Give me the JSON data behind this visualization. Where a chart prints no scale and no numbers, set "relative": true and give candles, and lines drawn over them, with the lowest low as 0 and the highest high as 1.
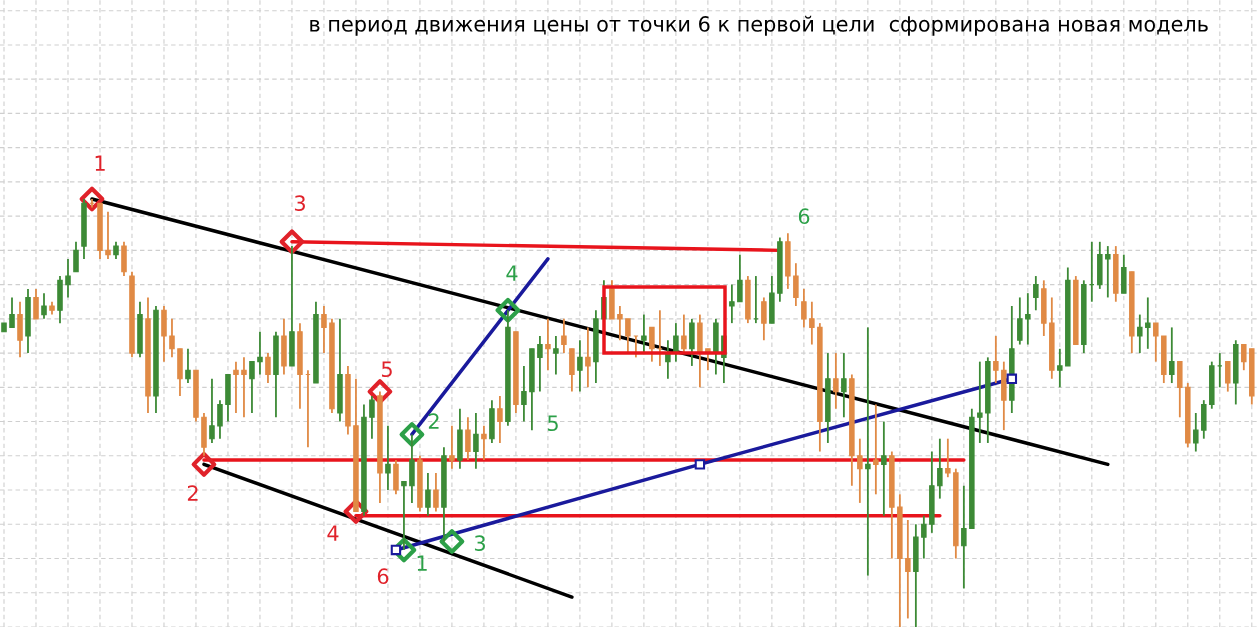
{
  "chart_data": {
    "type": "candlestick",
    "title": "в период движения цены от точки 6 к первой цели  сформирована новая модель",
    "relative": true,
    "grid": true,
    "categories": [
      null,
      null,
      null,
      null,
      null,
      null,
      null,
      null,
      null,
      null,
      null,
      null,
      null,
      null,
      null,
      null,
      null,
      null,
      null,
      null,
      null,
      null,
      null,
      null,
      null,
      null,
      null,
      null,
      null,
      null,
      null,
      null,
      null,
      null,
      null,
      null,
      null,
      null,
      null,
      null,
      null,
      null,
      null,
      null,
      null,
      null,
      null,
      null,
      null,
      null,
      null,
      null,
      null,
      null,
      null,
      null,
      null,
      null,
      null,
      null,
      null,
      null,
      null,
      null,
      null,
      null,
      null,
      null,
      null,
      null,
      null,
      null,
      null,
      null,
      null,
      null,
      null,
      null,
      null,
      null,
      null,
      null,
      null,
      null,
      null,
      null,
      null,
      null,
      null,
      null,
      null,
      null,
      null,
      null,
      null,
      null,
      null,
      null,
      null,
      null,
      null,
      null,
      null,
      null,
      null,
      null,
      null,
      null,
      null,
      null,
      null,
      null,
      null,
      null,
      null,
      null,
      null,
      null,
      null,
      null,
      null,
      null,
      null,
      null,
      null,
      null,
      null,
      null,
      null,
      null,
      null,
      null,
      null,
      null,
      null,
      null,
      null,
      null,
      null,
      null,
      null,
      null,
      null,
      null,
      null,
      null,
      null,
      null,
      null,
      null,
      null,
      null,
      null,
      null,
      null,
      null,
      null
    ],
    "ohlc": [
      [
        0.69,
        0.71,
        0.69,
        0.71
      ],
      [
        0.7,
        0.77,
        0.7,
        0.73
      ],
      [
        0.73,
        0.76,
        0.63,
        0.67
      ],
      [
        0.68,
        0.79,
        0.64,
        0.77
      ],
      [
        0.77,
        0.79,
        0.72,
        0.72
      ],
      [
        0.73,
        0.78,
        0.72,
        0.75
      ],
      [
        0.75,
        0.76,
        0.73,
        0.74
      ],
      [
        0.74,
        0.82,
        0.71,
        0.81
      ],
      [
        0.8,
        0.86,
        0.77,
        0.82
      ],
      [
        0.83,
        0.9,
        0.83,
        0.88
      ],
      [
        0.89,
        1.0,
        0.86,
        0.99
      ],
      [
        0.99,
        1.0,
        0.98,
        0.99
      ],
      [
        0.99,
        0.99,
        0.86,
        0.88
      ],
      [
        0.88,
        0.97,
        0.86,
        0.87
      ],
      [
        0.87,
        0.9,
        0.86,
        0.89
      ],
      [
        0.89,
        0.9,
        0.82,
        0.83
      ],
      [
        0.82,
        0.83,
        0.63,
        0.64
      ],
      [
        0.64,
        0.76,
        0.63,
        0.73
      ],
      [
        0.72,
        0.77,
        0.5,
        0.54
      ],
      [
        0.54,
        0.75,
        0.5,
        0.74
      ],
      [
        0.74,
        0.75,
        0.62,
        0.68
      ],
      [
        0.68,
        0.72,
        0.63,
        0.65
      ],
      [
        0.65,
        0.65,
        0.54,
        0.58
      ],
      [
        0.58,
        0.65,
        0.57,
        0.6
      ],
      [
        0.6,
        0.6,
        0.48,
        0.49
      ],
      [
        0.49,
        0.5,
        0.4,
        0.42
      ],
      [
        0.44,
        0.58,
        0.43,
        0.47
      ],
      [
        0.47,
        0.53,
        0.44,
        0.52
      ],
      [
        0.52,
        0.59,
        0.48,
        0.59
      ],
      [
        0.6,
        0.62,
        0.5,
        0.59
      ],
      [
        0.6,
        0.63,
        0.49,
        0.59
      ],
      [
        0.58,
        0.62,
        0.5,
        0.62
      ],
      [
        0.62,
        0.69,
        0.59,
        0.63
      ],
      [
        0.63,
        0.64,
        0.57,
        0.59
      ],
      [
        0.59,
        0.69,
        0.49,
        0.68
      ],
      [
        0.68,
        0.72,
        0.59,
        0.61
      ],
      [
        0.61,
        0.89,
        0.61,
        0.69
      ],
      [
        0.69,
        0.71,
        0.51,
        0.59
      ],
      [
        0.59,
        0.6,
        0.42,
        0.59
      ],
      [
        0.57,
        0.76,
        0.57,
        0.73
      ],
      [
        0.73,
        0.75,
        0.64,
        0.7
      ],
      [
        0.71,
        0.72,
        0.5,
        0.51
      ],
      [
        0.5,
        0.72,
        0.48,
        0.59
      ],
      [
        0.59,
        0.61,
        0.45,
        0.47
      ],
      [
        0.47,
        0.58,
        0.27,
        0.27
      ],
      [
        0.27,
        0.52,
        0.26,
        0.49
      ],
      [
        0.49,
        0.54,
        0.44,
        0.53
      ],
      [
        0.54,
        0.55,
        0.29,
        0.36
      ],
      [
        0.36,
        0.47,
        0.32,
        0.38
      ],
      [
        0.38,
        0.39,
        0.31,
        0.32
      ],
      [
        0.33,
        0.34,
        0.18,
        0.34
      ],
      [
        0.33,
        0.45,
        0.29,
        0.39
      ],
      [
        0.39,
        0.4,
        0.27,
        0.28
      ],
      [
        0.28,
        0.36,
        0.26,
        0.32
      ],
      [
        0.32,
        0.36,
        0.27,
        0.28
      ],
      [
        0.28,
        0.42,
        0.2,
        0.4
      ],
      [
        0.4,
        0.47,
        0.37,
        0.39
      ],
      [
        0.39,
        0.51,
        0.37,
        0.46
      ],
      [
        0.46,
        0.49,
        0.39,
        0.41
      ],
      [
        0.41,
        0.5,
        0.37,
        0.45
      ],
      [
        0.45,
        0.47,
        0.39,
        0.44
      ],
      [
        0.44,
        0.53,
        0.43,
        0.51
      ],
      [
        0.51,
        0.54,
        0.43,
        0.48
      ],
      [
        0.48,
        0.74,
        0.47,
        0.7
      ],
      [
        0.69,
        0.69,
        0.5,
        0.52
      ],
      [
        0.52,
        0.61,
        0.48,
        0.55
      ],
      [
        0.55,
        0.65,
        0.46,
        0.65
      ],
      [
        0.63,
        0.68,
        0.55,
        0.66
      ],
      [
        0.66,
        0.72,
        0.6,
        0.65
      ],
      [
        0.64,
        0.68,
        0.59,
        0.65
      ],
      [
        0.68,
        0.72,
        0.64,
        0.66
      ],
      [
        0.65,
        0.65,
        0.55,
        0.59
      ],
      [
        0.6,
        0.67,
        0.55,
        0.63
      ],
      [
        0.63,
        0.7,
        0.56,
        0.61
      ],
      [
        0.62,
        0.74,
        0.57,
        0.72
      ],
      [
        0.72,
        0.81,
        0.72,
        0.77
      ],
      [
        0.79,
        0.81,
        0.72,
        0.72
      ],
      [
        0.73,
        0.75,
        0.67,
        0.72
      ],
      [
        0.72,
        0.72,
        0.64,
        0.68
      ],
      [
        0.68,
        0.68,
        0.63,
        0.68
      ],
      [
        0.67,
        0.73,
        0.64,
        0.68
      ],
      [
        0.7,
        0.7,
        0.62,
        0.65
      ],
      [
        0.65,
        0.74,
        0.61,
        0.65
      ],
      [
        0.62,
        0.67,
        0.58,
        0.64
      ],
      [
        0.64,
        0.71,
        0.62,
        0.68
      ],
      [
        0.68,
        0.73,
        0.64,
        0.65
      ],
      [
        0.65,
        0.72,
        0.61,
        0.71
      ],
      [
        0.71,
        0.73,
        0.56,
        0.64
      ],
      [
        0.65,
        0.65,
        0.6,
        0.64
      ],
      [
        0.64,
        0.72,
        0.59,
        0.71
      ],
      [
        0.63,
        0.68,
        0.57,
        0.68
      ],
      [
        0.75,
        0.8,
        0.71,
        0.76
      ],
      [
        0.76,
        0.87,
        0.76,
        0.81
      ],
      [
        0.81,
        0.82,
        0.71,
        0.72
      ],
      [
        0.72,
        0.82,
        0.71,
        0.72
      ],
      [
        0.76,
        0.77,
        0.67,
        0.71
      ],
      [
        0.71,
        0.82,
        0.71,
        0.78
      ],
      [
        0.78,
        0.91,
        0.76,
        0.9
      ],
      [
        0.9,
        0.92,
        0.79,
        0.82
      ],
      [
        0.82,
        0.85,
        0.75,
        0.77
      ],
      [
        0.76,
        0.79,
        0.7,
        0.72
      ],
      [
        0.72,
        0.76,
        0.66,
        0.7
      ],
      [
        0.7,
        0.71,
        0.41,
        0.48
      ],
      [
        0.48,
        0.64,
        0.43,
        0.58
      ],
      [
        0.58,
        0.64,
        0.51,
        0.55
      ],
      [
        0.55,
        0.64,
        0.49,
        0.58
      ],
      [
        0.58,
        0.59,
        0.33,
        0.4
      ],
      [
        0.4,
        0.44,
        0.29,
        0.37
      ],
      [
        0.37,
        0.7,
        0.12,
        0.38
      ],
      [
        0.39,
        0.52,
        0.31,
        0.38
      ],
      [
        0.38,
        0.48,
        0.26,
        0.4
      ],
      [
        0.4,
        0.41,
        0.16,
        0.28
      ],
      [
        0.28,
        0.31,
        0.0,
        0.16
      ],
      [
        0.16,
        0.25,
        0.02,
        0.13
      ],
      [
        0.13,
        0.24,
        0.0,
        0.21
      ],
      [
        0.21,
        0.26,
        0.16,
        0.24
      ],
      [
        0.24,
        0.41,
        0.22,
        0.33
      ],
      [
        0.33,
        0.44,
        0.3,
        0.37
      ],
      [
        0.37,
        0.44,
        0.35,
        0.36
      ],
      [
        0.36,
        0.37,
        0.16,
        0.19
      ],
      [
        0.19,
        0.33,
        0.09,
        0.23
      ],
      [
        0.23,
        0.51,
        0.23,
        0.49
      ],
      [
        0.49,
        0.62,
        0.43,
        0.5
      ],
      [
        0.5,
        0.63,
        0.43,
        0.62
      ],
      [
        0.62,
        0.68,
        0.57,
        0.6
      ],
      [
        0.6,
        0.62,
        0.46,
        0.53
      ],
      [
        0.53,
        0.75,
        0.5,
        0.65
      ],
      [
        0.67,
        0.77,
        0.66,
        0.72
      ],
      [
        0.72,
        0.78,
        0.66,
        0.73
      ],
      [
        0.77,
        0.82,
        0.74,
        0.8
      ],
      [
        0.79,
        0.81,
        0.68,
        0.71
      ],
      [
        0.71,
        0.77,
        0.58,
        0.6
      ],
      [
        0.6,
        0.65,
        0.56,
        0.61
      ],
      [
        0.61,
        0.84,
        0.61,
        0.81
      ],
      [
        0.81,
        0.82,
        0.66,
        0.66
      ],
      [
        0.66,
        0.81,
        0.64,
        0.8
      ],
      [
        0.8,
        0.9,
        0.76,
        0.8
      ],
      [
        0.8,
        0.9,
        0.79,
        0.87
      ],
      [
        0.86,
        0.89,
        0.77,
        0.87
      ],
      [
        0.87,
        0.89,
        0.76,
        0.78
      ],
      [
        0.78,
        0.87,
        0.78,
        0.84
      ],
      [
        0.83,
        0.83,
        0.64,
        0.68
      ],
      [
        0.68,
        0.73,
        0.64,
        0.7
      ],
      [
        0.7,
        0.77,
        0.65,
        0.71
      ],
      [
        0.71,
        0.71,
        0.62,
        0.68
      ],
      [
        0.68,
        0.68,
        0.57,
        0.59
      ],
      [
        0.59,
        0.7,
        0.57,
        0.62
      ],
      [
        0.62,
        0.62,
        0.49,
        0.56
      ],
      [
        0.56,
        0.57,
        0.42,
        0.43
      ],
      [
        0.43,
        0.5,
        0.41,
        0.46
      ],
      [
        0.46,
        0.53,
        0.44,
        0.52
      ],
      [
        0.52,
        0.62,
        0.51,
        0.61
      ],
      [
        0.61,
        0.64,
        0.56,
        0.61
      ],
      [
        0.62,
        0.62,
        0.55,
        0.57
      ],
      [
        0.57,
        0.67,
        0.52,
        0.66
      ],
      [
        0.66,
        0.66,
        0.6,
        0.62
      ],
      [
        0.65,
        0.65,
        0.52,
        0.54
      ]
    ],
    "colors": [
      "#3d8a36",
      "#3d8a36",
      "#e08a45",
      "#3d8a36",
      "#e08a45",
      "#3d8a36",
      "#e08a45",
      "#3d8a36",
      "#3d8a36",
      "#3d8a36",
      "#3d8a36",
      "#e08a45",
      "#e08a45",
      "#e08a45",
      "#3d8a36",
      "#e08a45",
      "#e08a45",
      "#3d8a36",
      "#e08a45",
      "#3d8a36",
      "#e08a45",
      "#e08a45",
      "#e08a45",
      "#3d8a36",
      "#e08a45",
      "#e08a45",
      "#3d8a36",
      "#3d8a36",
      "#3d8a36",
      "#e08a45",
      "#e08a45",
      "#3d8a36",
      "#3d8a36",
      "#e08a45",
      "#3d8a36",
      "#e08a45",
      "#3d8a36",
      "#e08a45",
      "#e08a45",
      "#3d8a36",
      "#e08a45",
      "#e08a45",
      "#3d8a36",
      "#e08a45",
      "#e08a45",
      "#3d8a36",
      "#3d8a36",
      "#e08a45",
      "#3d8a36",
      "#e08a45",
      "#3d8a36",
      "#3d8a36",
      "#e08a45",
      "#3d8a36",
      "#e08a45",
      "#3d8a36",
      "#e08a45",
      "#3d8a36",
      "#e08a45",
      "#3d8a36",
      "#e08a45",
      "#3d8a36",
      "#e08a45",
      "#3d8a36",
      "#e08a45",
      "#3d8a36",
      "#3d8a36",
      "#3d8a36",
      "#e08a45",
      "#3d8a36",
      "#e08a45",
      "#e08a45",
      "#3d8a36",
      "#e08a45",
      "#3d8a36",
      "#3d8a36",
      "#e08a45",
      "#e08a45",
      "#e08a45",
      "#e08a45",
      "#3d8a36",
      "#e08a45",
      "#e08a45",
      "#3d8a36",
      "#3d8a36",
      "#e08a45",
      "#3d8a36",
      "#e08a45",
      "#e08a45",
      "#3d8a36",
      "#3d8a36",
      "#3d8a36",
      "#3d8a36",
      "#e08a45",
      "#3d8a36",
      "#e08a45",
      "#3d8a36",
      "#3d8a36",
      "#e08a45",
      "#e08a45",
      "#e08a45",
      "#e08a45",
      "#e08a45",
      "#3d8a36",
      "#e08a45",
      "#3d8a36",
      "#e08a45",
      "#e08a45",
      "#3d8a36",
      "#e08a45",
      "#3d8a36",
      "#e08a45",
      "#e08a45",
      "#e08a45",
      "#3d8a36",
      "#3d8a36",
      "#3d8a36",
      "#3d8a36",
      "#e08a45",
      "#e08a45",
      "#3d8a36",
      "#3d8a36",
      "#3d8a36",
      "#3d8a36",
      "#e08a45",
      "#e08a45",
      "#3d8a36",
      "#3d8a36",
      "#3d8a36",
      "#3d8a36",
      "#e08a45",
      "#e08a45",
      "#3d8a36",
      "#3d8a36",
      "#e08a45",
      "#3d8a36",
      "#3d8a36",
      "#3d8a36",
      "#3d8a36",
      "#e08a45",
      "#3d8a36",
      "#e08a45",
      "#3d8a36",
      "#3d8a36",
      "#e08a45",
      "#e08a45",
      "#3d8a36",
      "#e08a45",
      "#e08a45",
      "#3d8a36",
      "#3d8a36",
      "#3d8a36",
      "#3d8a36",
      "#e08a45",
      "#3d8a36",
      "#e08a45",
      "#e08a45"
    ],
    "series": [
      {
        "type": "line",
        "color": "#000000",
        "values": [
          null,
          null,
          null,
          null,
          null,
          null,
          null,
          null,
          null,
          null,
          null,
          1.0,
          null,
          null,
          null,
          null,
          null,
          null,
          null,
          null,
          null,
          null,
          null,
          null,
          null,
          null,
          null,
          null,
          null,
          null,
          null,
          null,
          null,
          null,
          null,
          null,
          null,
          null,
          null,
          null,
          null,
          null,
          null,
          null,
          null,
          null,
          null,
          null,
          null,
          null,
          null,
          null,
          null,
          null,
          null,
          null,
          null,
          null,
          null,
          null,
          null,
          null,
          null,
          null,
          null,
          null,
          null,
          null,
          null,
          null,
          null,
          null,
          null,
          null,
          null,
          null,
          null,
          null,
          null,
          null,
          null,
          null,
          null,
          null,
          null,
          null,
          null,
          null,
          null,
          null,
          null,
          null,
          null,
          null,
          null,
          null,
          null,
          null,
          null,
          null,
          null,
          null,
          null,
          null,
          null,
          null,
          null,
          null,
          null,
          null,
          null,
          null,
          null,
          null,
          null,
          null,
          null,
          null,
          null,
          null,
          null,
          null,
          null,
          null,
          null,
          null,
          null,
          null,
          null,
          null,
          null,
          null,
          null,
          null,
          null,
          null,
          null,
          null,
          0.38,
          null,
          null,
          null,
          null,
          null,
          null,
          null,
          null,
          null,
          null,
          null,
          null,
          null,
          null,
          null,
          null,
          null,
          null
        ]
      },
      {
        "type": "line",
        "color": "#000000",
        "values": [
          null,
          null,
          null,
          null,
          null,
          null,
          null,
          null,
          null,
          null,
          null,
          null,
          null,
          null,
          null,
          null,
          null,
          null,
          null,
          null,
          null,
          null,
          null,
          null,
          null,
          0.38,
          null,
          null,
          null,
          null,
          null,
          null,
          null,
          null,
          null,
          null,
          null,
          null,
          null,
          null,
          null,
          null,
          null,
          null,
          null,
          null,
          null,
          null,
          null,
          null,
          null,
          null,
          null,
          null,
          null,
          null,
          null,
          null,
          null,
          null,
          null,
          null,
          null,
          null,
          null,
          null,
          null,
          null,
          null,
          null,
          null,
          0.07,
          null,
          null,
          null,
          null,
          null,
          null,
          null,
          null,
          null,
          null,
          null,
          null,
          null,
          null,
          null,
          null,
          null,
          null,
          null,
          null,
          null,
          null,
          null,
          null,
          null,
          null,
          null,
          null,
          null,
          null,
          null,
          null,
          null,
          null,
          null,
          null,
          null,
          null,
          null,
          null,
          null,
          null,
          null,
          null,
          null,
          null,
          null,
          null,
          null,
          null,
          null,
          null,
          null,
          null,
          null,
          null,
          null,
          null,
          null,
          null,
          null,
          null,
          null,
          null,
          null,
          null,
          null,
          null,
          null,
          null,
          null,
          null,
          null,
          null,
          null,
          null,
          null,
          null,
          null,
          null,
          null,
          null,
          null,
          null,
          null
        ]
      },
      {
        "type": "line",
        "color": "#e8141c",
        "values": [
          null,
          null,
          null,
          null,
          null,
          null,
          null,
          null,
          null,
          null,
          null,
          null,
          null,
          null,
          null,
          null,
          null,
          null,
          null,
          null,
          null,
          null,
          null,
          null,
          null,
          null,
          null,
          null,
          null,
          null,
          null,
          null,
          null,
          null,
          null,
          null,
          0.9,
          null,
          null,
          null,
          null,
          null,
          null,
          null,
          null,
          null,
          null,
          null,
          null,
          null,
          null,
          null,
          null,
          null,
          null,
          null,
          null,
          null,
          null,
          null,
          null,
          null,
          null,
          null,
          null,
          null,
          null,
          null,
          null,
          null,
          null,
          null,
          null,
          null,
          null,
          null,
          null,
          null,
          null,
          null,
          null,
          null,
          null,
          null,
          null,
          null,
          null,
          null,
          null,
          null,
          null,
          null,
          null,
          null,
          null,
          null,
          null,
          0.88,
          null,
          null,
          null,
          null,
          null,
          null,
          null,
          null,
          null,
          null,
          null,
          null,
          null,
          null,
          null,
          null,
          null,
          null,
          null,
          null,
          null,
          null,
          null,
          null,
          null,
          null,
          null,
          null,
          null,
          null,
          null,
          null,
          null,
          null,
          null,
          null,
          null,
          null,
          null,
          null,
          null,
          null,
          null,
          null,
          null,
          null,
          null,
          null,
          null,
          null,
          null,
          null,
          null,
          null,
          null,
          null,
          null,
          null,
          null
        ]
      },
      {
        "type": "line",
        "color": "#e8141c",
        "values": [
          null,
          null,
          null,
          null,
          null,
          null,
          null,
          null,
          null,
          null,
          null,
          null,
          null,
          null,
          null,
          null,
          null,
          null,
          null,
          null,
          null,
          null,
          null,
          null,
          null,
          0.39,
          null,
          null,
          null,
          null,
          null,
          null,
          null,
          null,
          null,
          null,
          null,
          null,
          null,
          null,
          null,
          null,
          null,
          null,
          null,
          null,
          null,
          null,
          null,
          null,
          null,
          null,
          null,
          null,
          null,
          null,
          null,
          null,
          null,
          null,
          null,
          null,
          null,
          null,
          null,
          null,
          null,
          null,
          null,
          null,
          null,
          null,
          null,
          null,
          null,
          null,
          null,
          null,
          null,
          null,
          null,
          null,
          null,
          null,
          null,
          null,
          null,
          null,
          null,
          null,
          null,
          null,
          null,
          null,
          null,
          null,
          null,
          null,
          null,
          null,
          null,
          null,
          null,
          null,
          null,
          null,
          null,
          null,
          null,
          null,
          null,
          null,
          null,
          null,
          null,
          null,
          null,
          null,
          null,
          null,
          0.39,
          null,
          null,
          null,
          null,
          null,
          null,
          null,
          null,
          null,
          null,
          null,
          null,
          null,
          null,
          null,
          null,
          null,
          null,
          null,
          null,
          null,
          null,
          null,
          null,
          null,
          null,
          null,
          null,
          null,
          null,
          null,
          null,
          null,
          null,
          null,
          null
        ]
      },
      {
        "type": "line",
        "color": "#e8141c",
        "values": [
          null,
          null,
          null,
          null,
          null,
          null,
          null,
          null,
          null,
          null,
          null,
          null,
          null,
          null,
          null,
          null,
          null,
          null,
          null,
          null,
          null,
          null,
          null,
          null,
          null,
          null,
          null,
          null,
          null,
          null,
          null,
          null,
          null,
          null,
          null,
          null,
          null,
          null,
          null,
          null,
          null,
          null,
          null,
          null,
          0.26,
          null,
          null,
          null,
          null,
          null,
          null,
          null,
          null,
          null,
          null,
          null,
          null,
          null,
          null,
          null,
          null,
          null,
          null,
          null,
          null,
          null,
          null,
          null,
          null,
          null,
          null,
          null,
          null,
          null,
          null,
          null,
          null,
          null,
          null,
          null,
          null,
          null,
          null,
          null,
          null,
          null,
          null,
          null,
          null,
          null,
          null,
          null,
          null,
          null,
          null,
          null,
          null,
          null,
          null,
          null,
          null,
          null,
          null,
          null,
          null,
          null,
          null,
          null,
          null,
          null,
          null,
          null,
          null,
          null,
          null,
          null,
          null,
          0.26,
          null,
          null,
          null,
          null,
          null,
          null,
          null,
          null,
          null,
          null,
          null,
          null,
          null,
          null,
          null,
          null,
          null,
          null,
          null,
          null,
          null,
          null,
          null,
          null,
          null,
          null,
          null,
          null,
          null,
          null,
          null,
          null,
          null,
          null,
          null,
          null,
          null,
          null,
          null
        ]
      },
      {
        "type": "line",
        "color": "#1a1a9c",
        "values": [
          null,
          null,
          null,
          null,
          null,
          null,
          null,
          null,
          null,
          null,
          null,
          null,
          null,
          null,
          null,
          null,
          null,
          null,
          null,
          null,
          null,
          null,
          null,
          null,
          null,
          null,
          null,
          null,
          null,
          null,
          null,
          null,
          null,
          null,
          null,
          null,
          null,
          null,
          null,
          null,
          null,
          null,
          null,
          null,
          null,
          null,
          null,
          null,
          null,
          null,
          null,
          0.45,
          null,
          null,
          null,
          null,
          null,
          null,
          null,
          null,
          null,
          null,
          null,
          null,
          null,
          null,
          null,
          null,
          0.86,
          null,
          null,
          null,
          null,
          null,
          null,
          null,
          null,
          null,
          null,
          null,
          null,
          null,
          null,
          null,
          null,
          null,
          null,
          null,
          null,
          null,
          null,
          null,
          null,
          null,
          null,
          null,
          null,
          null,
          null,
          null,
          null,
          null,
          null,
          null,
          null,
          null,
          null,
          null,
          null,
          null,
          null,
          null,
          null,
          null,
          null,
          null,
          null,
          null,
          null,
          null,
          null,
          null,
          null,
          null,
          null,
          null,
          null,
          null,
          null,
          null,
          null,
          null,
          null,
          null,
          null,
          null,
          null,
          null,
          null,
          null,
          null,
          null,
          null,
          null,
          null,
          null,
          null,
          null,
          null,
          null,
          null,
          null,
          null,
          null,
          null,
          null,
          null
        ]
      },
      {
        "type": "line",
        "color": "#1a1a9c",
        "marker": "square",
        "values": [
          null,
          null,
          null,
          null,
          null,
          null,
          null,
          null,
          null,
          null,
          null,
          null,
          null,
          null,
          null,
          null,
          null,
          null,
          null,
          null,
          null,
          null,
          null,
          null,
          null,
          null,
          null,
          null,
          null,
          null,
          null,
          null,
          null,
          null,
          null,
          null,
          null,
          null,
          null,
          null,
          null,
          null,
          null,
          null,
          null,
          null,
          null,
          null,
          null,
          0.18,
          null,
          null,
          null,
          null,
          null,
          null,
          null,
          null,
          null,
          null,
          null,
          null,
          null,
          null,
          null,
          null,
          null,
          null,
          null,
          null,
          null,
          null,
          null,
          null,
          null,
          null,
          null,
          null,
          null,
          null,
          null,
          null,
          null,
          null,
          null,
          null,
          null,
          0.38,
          null,
          null,
          null,
          null,
          null,
          null,
          null,
          null,
          null,
          null,
          null,
          null,
          null,
          null,
          null,
          null,
          null,
          null,
          null,
          null,
          null,
          null,
          null,
          null,
          null,
          null,
          null,
          null,
          null,
          null,
          null,
          null,
          null,
          null,
          null,
          null,
          null,
          null,
          0.58,
          null,
          null,
          null,
          null,
          null,
          null,
          null,
          null,
          null,
          null,
          null,
          null,
          null,
          null,
          null,
          null,
          null,
          null,
          null,
          null,
          null,
          null,
          null,
          null,
          null,
          null,
          null,
          null,
          null,
          null
        ]
      },
      {
        "type": "scatter",
        "color": "#e0222a",
        "marker": "diamond",
        "values": [
          null,
          null,
          null,
          null,
          null,
          null,
          null,
          null,
          null,
          null,
          null,
          1.0,
          null,
          null,
          null,
          null,
          null,
          null,
          null,
          null,
          null,
          null,
          null,
          null,
          null,
          0.38,
          null,
          null,
          null,
          null,
          null,
          null,
          null,
          null,
          null,
          null,
          0.9,
          null,
          null,
          null,
          null,
          null,
          null,
          null,
          0.27,
          null,
          null,
          0.55,
          null,
          null,
          null,
          null,
          null,
          null,
          null,
          null,
          null,
          null,
          null,
          null,
          null,
          null,
          null,
          null,
          null,
          null,
          null,
          null,
          null,
          null,
          null,
          null,
          null,
          null,
          null,
          null,
          null,
          null,
          null,
          null,
          null,
          null,
          null,
          null,
          null,
          null,
          null,
          null,
          null,
          null,
          null,
          null,
          null,
          null,
          null,
          null,
          null,
          null,
          null,
          null,
          null,
          null,
          null,
          null,
          null,
          null,
          null,
          null,
          null,
          null,
          null,
          null,
          null,
          null,
          null,
          null,
          null,
          null,
          null,
          null,
          null,
          null,
          null,
          null,
          null,
          null,
          null,
          null,
          null,
          null,
          null,
          null,
          null,
          null,
          null,
          null,
          null,
          null,
          null,
          null,
          null,
          null,
          null,
          null,
          null,
          null,
          null,
          null,
          null,
          null,
          null,
          null,
          null,
          null,
          null,
          null,
          null
        ]
      },
      {
        "type": "scatter",
        "color": "#2ca048",
        "marker": "diamond",
        "values": [
          null,
          null,
          null,
          null,
          null,
          null,
          null,
          null,
          null,
          null,
          null,
          null,
          null,
          null,
          null,
          null,
          null,
          null,
          null,
          null,
          null,
          null,
          null,
          null,
          null,
          null,
          null,
          null,
          null,
          null,
          null,
          null,
          null,
          null,
          null,
          null,
          null,
          null,
          null,
          null,
          null,
          null,
          null,
          null,
          null,
          null,
          null,
          null,
          null,
          null,
          0.18,
          0.45,
          null,
          null,
          null,
          null,
          0.2,
          null,
          null,
          null,
          null,
          null,
          null,
          0.74,
          null,
          null,
          null,
          null,
          null,
          null,
          null,
          null,
          null,
          null,
          null,
          null,
          null,
          null,
          null,
          null,
          null,
          null,
          null,
          null,
          null,
          null,
          null,
          null,
          null,
          null,
          null,
          null,
          null,
          null,
          null,
          null,
          null,
          null,
          null,
          null,
          null,
          null,
          null,
          null,
          null,
          null,
          null,
          null,
          null,
          null,
          null,
          null,
          null,
          null,
          null,
          null,
          null,
          null,
          null,
          null,
          null,
          null,
          null,
          null,
          null,
          null,
          null,
          null,
          null,
          null,
          null,
          null,
          null,
          null,
          null,
          null,
          null,
          null,
          null,
          null,
          null,
          null,
          null,
          null,
          null,
          null,
          null,
          null,
          null,
          null,
          null,
          null,
          null,
          null,
          null,
          null,
          null
        ]
      }
    ],
    "annotations": [
      "1",
      "3",
      "2",
      "4",
      "5",
      "6",
      "1",
      "2",
      "3",
      "4",
      "5",
      "6"
    ]
  }
}
